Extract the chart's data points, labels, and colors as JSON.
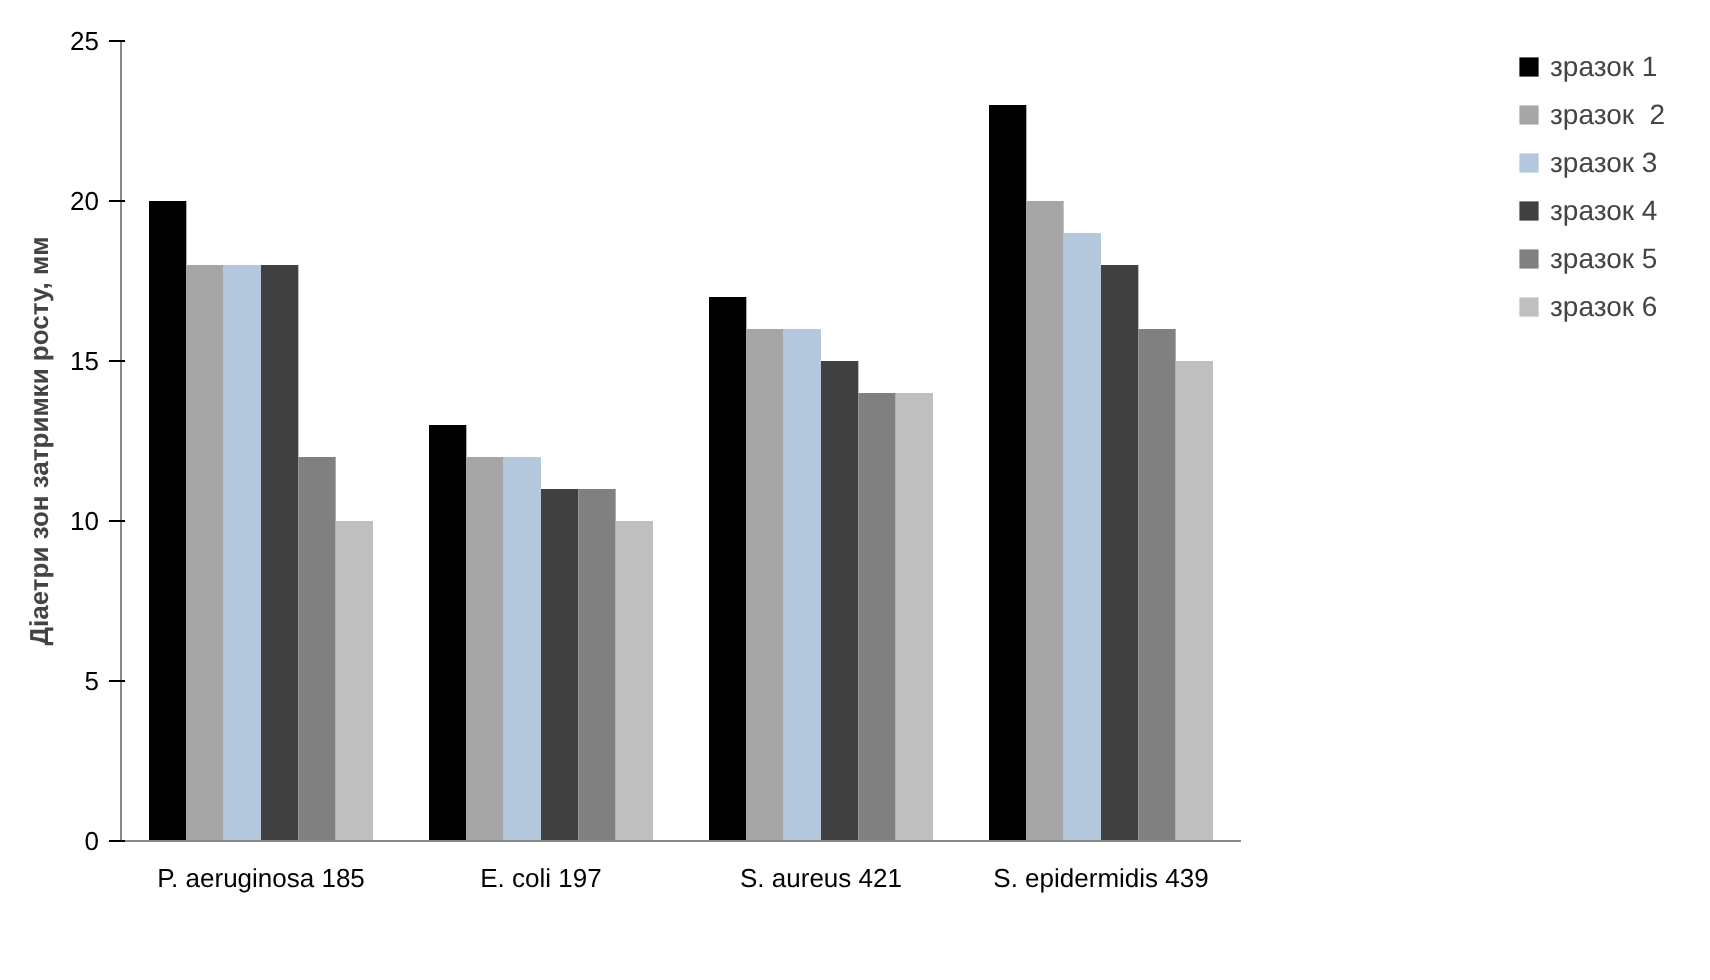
{
  "chart_data": {
    "type": "bar",
    "ylabel": "Діаетри зон затримки росту, мм",
    "categories": [
      "P. aeruginosa 185",
      "E. coli 197",
      "S. aureus 421",
      "S. epidermidis 439"
    ],
    "series": [
      {
        "name": "зразок 1",
        "color": "#000000",
        "values": [
          20,
          13,
          17,
          23
        ]
      },
      {
        "name": "зразок  2",
        "color": "#a6a6a6",
        "values": [
          18,
          12,
          16,
          20
        ]
      },
      {
        "name": "зразок 3",
        "color": "#b3c8dc",
        "values": [
          18,
          12,
          16,
          19
        ]
      },
      {
        "name": "зразок 4",
        "color": "#404040",
        "values": [
          18,
          11,
          15,
          18
        ]
      },
      {
        "name": "зразок 5",
        "color": "#808080",
        "values": [
          12,
          11,
          14,
          16
        ]
      },
      {
        "name": "зразок 6",
        "color": "#bfbfbf",
        "values": [
          10,
          10,
          14,
          15
        ]
      }
    ],
    "ylim": [
      0,
      25
    ],
    "yticks": [
      0,
      5,
      10,
      15,
      20,
      25
    ],
    "grid": false,
    "legend": "right"
  }
}
